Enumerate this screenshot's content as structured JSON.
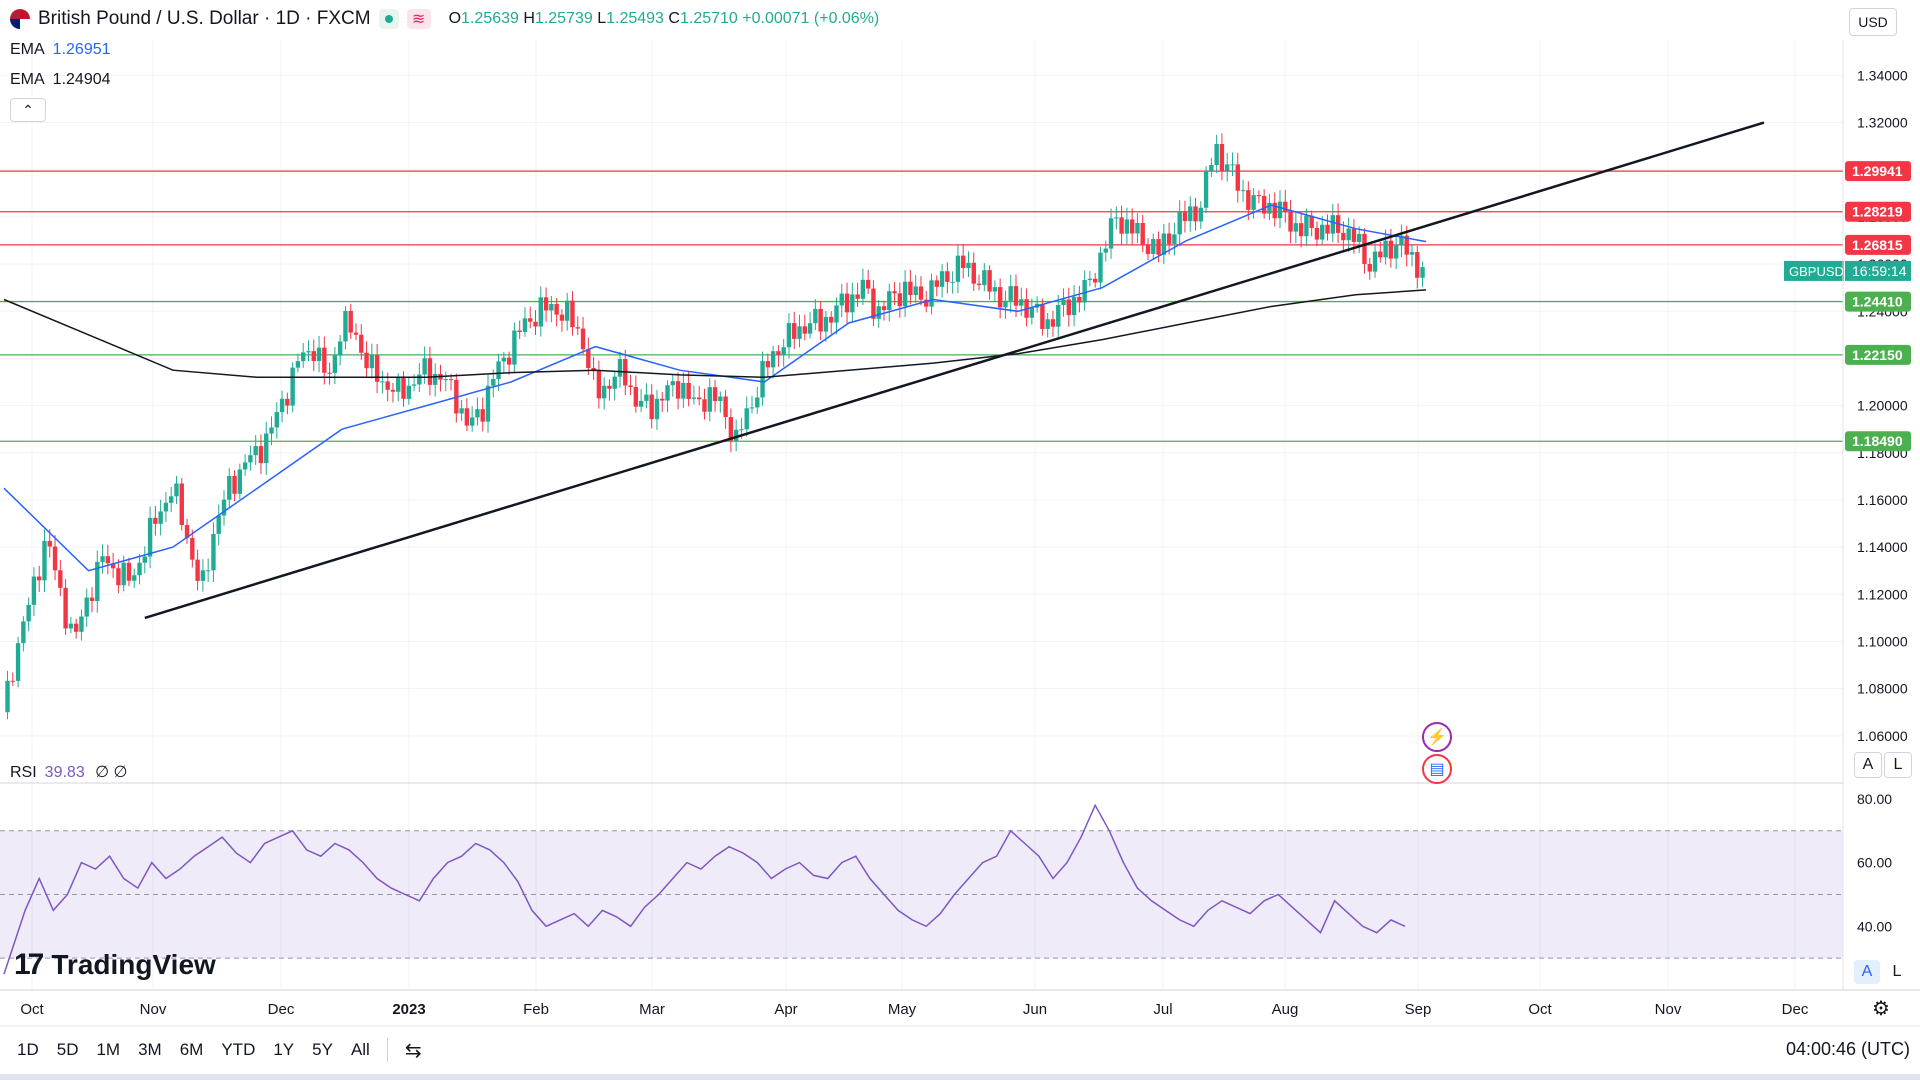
{
  "header": {
    "title": "British Pound / U.S. Dollar · 1D · FXCM",
    "open_label": "O",
    "open": "1.25639",
    "high_label": "H",
    "high": "1.25739",
    "low_label": "L",
    "low": "1.25493",
    "close_label": "C",
    "close": "1.25710",
    "change": "+0.00071 (+0.06%)"
  },
  "indicators": [
    {
      "name": "EMA",
      "value": "1.26951",
      "color": "#2962ff"
    },
    {
      "name": "EMA",
      "value": "1.24904",
      "color": "#131722"
    }
  ],
  "currency_button": "USD",
  "collapse_icon": "chevron-up-icon",
  "rsi": {
    "label": "RSI",
    "value": "39.83",
    "params": "∅ ∅",
    "color": "#7e57c2"
  },
  "brand": {
    "name": "TradingView"
  },
  "price_axis": {
    "labels": [
      "1.34000",
      "1.32000",
      "1.30000",
      "1.28000",
      "1.26000",
      "1.24000",
      "1.22000",
      "1.20000",
      "1.18000",
      "1.16000",
      "1.14000",
      "1.12000",
      "1.10000",
      "1.08000",
      "1.06000"
    ]
  },
  "level_labels": [
    {
      "value": "1.29941",
      "color": "#f23645"
    },
    {
      "value": "1.28219",
      "color": "#f23645"
    },
    {
      "value": "1.26815",
      "color": "#f23645"
    },
    {
      "value": "1.24410",
      "color": "#4caf50"
    },
    {
      "value": "1.22150",
      "color": "#4caf50"
    },
    {
      "value": "1.18490",
      "color": "#4caf50"
    }
  ],
  "current_price_tag": {
    "symbol": "GBPUSD",
    "countdown": "16:59:14",
    "color": "#22ab94"
  },
  "rsi_axis": {
    "labels": [
      "80.00",
      "60.00",
      "40.00"
    ]
  },
  "time_axis": {
    "labels": [
      "Oct",
      "Nov",
      "Dec",
      "2023",
      "Feb",
      "Mar",
      "Apr",
      "May",
      "Jun",
      "Jul",
      "Aug",
      "Sep",
      "Oct",
      "Nov",
      "Dec"
    ]
  },
  "scale_buttons": {
    "auto": "A",
    "log": "L"
  },
  "range_buttons": [
    "1D",
    "5D",
    "1M",
    "3M",
    "6M",
    "YTD",
    "1Y",
    "5Y",
    "All"
  ],
  "clock": "04:00:46 (UTC)",
  "chart_data": {
    "type": "candlestick",
    "symbol": "GBPUSD",
    "timeframe": "1D",
    "ylim": [
      1.04,
      1.355
    ],
    "y_ticks": [
      1.34,
      1.32,
      1.3,
      1.28,
      1.26,
      1.24,
      1.22,
      1.2,
      1.18,
      1.16,
      1.14,
      1.12,
      1.1,
      1.08,
      1.06
    ],
    "x_labels": [
      "Oct",
      "Nov",
      "Dec",
      "2023",
      "Feb",
      "Mar",
      "Apr",
      "May",
      "Jun",
      "Jul",
      "Aug",
      "Sep",
      "Oct",
      "Nov",
      "Dec"
    ],
    "close_path": [
      [
        0,
        1.07
      ],
      [
        4,
        1.1
      ],
      [
        8,
        1.12
      ],
      [
        12,
        1.145
      ],
      [
        16,
        1.12
      ],
      [
        20,
        1.1
      ],
      [
        24,
        1.12
      ],
      [
        28,
        1.135
      ],
      [
        32,
        1.13
      ],
      [
        36,
        1.125
      ],
      [
        40,
        1.14
      ],
      [
        44,
        1.155
      ],
      [
        48,
        1.165
      ],
      [
        52,
        1.145
      ],
      [
        56,
        1.12
      ],
      [
        60,
        1.15
      ],
      [
        64,
        1.165
      ],
      [
        68,
        1.175
      ],
      [
        72,
        1.18
      ],
      [
        76,
        1.19
      ],
      [
        80,
        1.205
      ],
      [
        84,
        1.22
      ],
      [
        88,
        1.225
      ],
      [
        92,
        1.21
      ],
      [
        96,
        1.235
      ],
      [
        100,
        1.23
      ],
      [
        104,
        1.215
      ],
      [
        108,
        1.21
      ],
      [
        112,
        1.205
      ],
      [
        116,
        1.21
      ],
      [
        120,
        1.215
      ],
      [
        124,
        1.212
      ],
      [
        128,
        1.205
      ],
      [
        132,
        1.19
      ],
      [
        136,
        1.2
      ],
      [
        140,
        1.215
      ],
      [
        144,
        1.225
      ],
      [
        148,
        1.235
      ],
      [
        152,
        1.24
      ],
      [
        156,
        1.242
      ],
      [
        160,
        1.238
      ],
      [
        164,
        1.23
      ],
      [
        168,
        1.205
      ],
      [
        172,
        1.21
      ],
      [
        176,
        1.215
      ],
      [
        180,
        1.2
      ],
      [
        184,
        1.2
      ],
      [
        188,
        1.205
      ],
      [
        192,
        1.21
      ],
      [
        196,
        1.2
      ],
      [
        200,
        1.205
      ],
      [
        204,
        1.2
      ],
      [
        208,
        1.185
      ],
      [
        212,
        1.2
      ],
      [
        216,
        1.215
      ],
      [
        220,
        1.225
      ],
      [
        224,
        1.23
      ],
      [
        228,
        1.235
      ],
      [
        232,
        1.235
      ],
      [
        236,
        1.24
      ],
      [
        240,
        1.245
      ],
      [
        244,
        1.25
      ],
      [
        248,
        1.24
      ],
      [
        252,
        1.245
      ],
      [
        256,
        1.25
      ],
      [
        260,
        1.245
      ],
      [
        264,
        1.25
      ],
      [
        268,
        1.255
      ],
      [
        272,
        1.26
      ],
      [
        276,
        1.255
      ],
      [
        280,
        1.25
      ],
      [
        284,
        1.245
      ],
      [
        288,
        1.245
      ],
      [
        292,
        1.24
      ],
      [
        296,
        1.235
      ],
      [
        300,
        1.24
      ],
      [
        304,
        1.245
      ],
      [
        308,
        1.25
      ],
      [
        312,
        1.265
      ],
      [
        316,
        1.28
      ],
      [
        320,
        1.275
      ],
      [
        324,
        1.27
      ],
      [
        328,
        1.265
      ],
      [
        332,
        1.275
      ],
      [
        336,
        1.28
      ],
      [
        340,
        1.285
      ],
      [
        344,
        1.31
      ],
      [
        348,
        1.3
      ],
      [
        352,
        1.29
      ],
      [
        356,
        1.285
      ],
      [
        360,
        1.285
      ],
      [
        364,
        1.28
      ],
      [
        368,
        1.275
      ],
      [
        372,
        1.275
      ],
      [
        376,
        1.275
      ],
      [
        380,
        1.275
      ],
      [
        384,
        1.27
      ],
      [
        388,
        1.26
      ],
      [
        392,
        1.265
      ],
      [
        396,
        1.27
      ],
      [
        400,
        1.262
      ],
      [
        404,
        1.257
      ]
    ],
    "ema_fast": [
      [
        0,
        1.165
      ],
      [
        24,
        1.13
      ],
      [
        48,
        1.14
      ],
      [
        72,
        1.165
      ],
      [
        96,
        1.19
      ],
      [
        120,
        1.2
      ],
      [
        144,
        1.21
      ],
      [
        168,
        1.225
      ],
      [
        192,
        1.215
      ],
      [
        216,
        1.21
      ],
      [
        240,
        1.235
      ],
      [
        264,
        1.245
      ],
      [
        288,
        1.24
      ],
      [
        312,
        1.25
      ],
      [
        336,
        1.27
      ],
      [
        360,
        1.285
      ],
      [
        384,
        1.275
      ],
      [
        404,
        1.26951
      ]
    ],
    "ema_slow": [
      [
        0,
        1.245
      ],
      [
        24,
        1.23
      ],
      [
        48,
        1.215
      ],
      [
        72,
        1.212
      ],
      [
        96,
        1.212
      ],
      [
        120,
        1.212
      ],
      [
        144,
        1.214
      ],
      [
        168,
        1.215
      ],
      [
        192,
        1.213
      ],
      [
        216,
        1.212
      ],
      [
        240,
        1.215
      ],
      [
        264,
        1.218
      ],
      [
        288,
        1.222
      ],
      [
        312,
        1.228
      ],
      [
        336,
        1.235
      ],
      [
        360,
        1.242
      ],
      [
        384,
        1.247
      ],
      [
        404,
        1.24904
      ]
    ],
    "horizontal_levels": [
      1.29941,
      1.28219,
      1.26815,
      1.2441,
      1.2215,
      1.1849
    ],
    "trendline": {
      "from": [
        40,
        1.11
      ],
      "to": [
        500,
        1.32
      ]
    },
    "rsi": {
      "ylim": [
        20,
        85
      ],
      "bands": [
        30,
        50,
        70
      ],
      "values": [
        [
          0,
          25
        ],
        [
          6,
          45
        ],
        [
          10,
          55
        ],
        [
          14,
          45
        ],
        [
          18,
          50
        ],
        [
          22,
          60
        ],
        [
          26,
          58
        ],
        [
          30,
          62
        ],
        [
          34,
          55
        ],
        [
          38,
          52
        ],
        [
          42,
          60
        ],
        [
          46,
          55
        ],
        [
          50,
          58
        ],
        [
          54,
          62
        ],
        [
          58,
          65
        ],
        [
          62,
          68
        ],
        [
          66,
          63
        ],
        [
          70,
          60
        ],
        [
          74,
          66
        ],
        [
          78,
          68
        ],
        [
          82,
          70
        ],
        [
          86,
          64
        ],
        [
          90,
          62
        ],
        [
          94,
          66
        ],
        [
          98,
          64
        ],
        [
          102,
          60
        ],
        [
          106,
          55
        ],
        [
          110,
          52
        ],
        [
          114,
          50
        ],
        [
          118,
          48
        ],
        [
          122,
          55
        ],
        [
          126,
          60
        ],
        [
          130,
          62
        ],
        [
          134,
          66
        ],
        [
          138,
          64
        ],
        [
          142,
          60
        ],
        [
          146,
          54
        ],
        [
          150,
          45
        ],
        [
          154,
          40
        ],
        [
          158,
          42
        ],
        [
          162,
          44
        ],
        [
          166,
          40
        ],
        [
          170,
          45
        ],
        [
          174,
          43
        ],
        [
          178,
          40
        ],
        [
          182,
          46
        ],
        [
          186,
          50
        ],
        [
          190,
          55
        ],
        [
          194,
          60
        ],
        [
          198,
          58
        ],
        [
          202,
          62
        ],
        [
          206,
          65
        ],
        [
          210,
          63
        ],
        [
          214,
          60
        ],
        [
          218,
          55
        ],
        [
          222,
          58
        ],
        [
          226,
          60
        ],
        [
          230,
          56
        ],
        [
          234,
          55
        ],
        [
          238,
          60
        ],
        [
          242,
          62
        ],
        [
          246,
          55
        ],
        [
          250,
          50
        ],
        [
          254,
          45
        ],
        [
          258,
          42
        ],
        [
          262,
          40
        ],
        [
          266,
          44
        ],
        [
          270,
          50
        ],
        [
          274,
          55
        ],
        [
          278,
          60
        ],
        [
          282,
          62
        ],
        [
          286,
          70
        ],
        [
          290,
          66
        ],
        [
          294,
          62
        ],
        [
          298,
          55
        ],
        [
          302,
          60
        ],
        [
          306,
          68
        ],
        [
          310,
          78
        ],
        [
          314,
          70
        ],
        [
          318,
          60
        ],
        [
          322,
          52
        ],
        [
          326,
          48
        ],
        [
          330,
          45
        ],
        [
          334,
          42
        ],
        [
          338,
          40
        ],
        [
          342,
          45
        ],
        [
          346,
          48
        ],
        [
          350,
          46
        ],
        [
          354,
          44
        ],
        [
          358,
          48
        ],
        [
          362,
          50
        ],
        [
          366,
          46
        ],
        [
          370,
          42
        ],
        [
          374,
          38
        ],
        [
          378,
          48
        ],
        [
          382,
          44
        ],
        [
          386,
          40
        ],
        [
          390,
          38
        ],
        [
          394,
          42
        ],
        [
          398,
          40
        ]
      ]
    }
  }
}
